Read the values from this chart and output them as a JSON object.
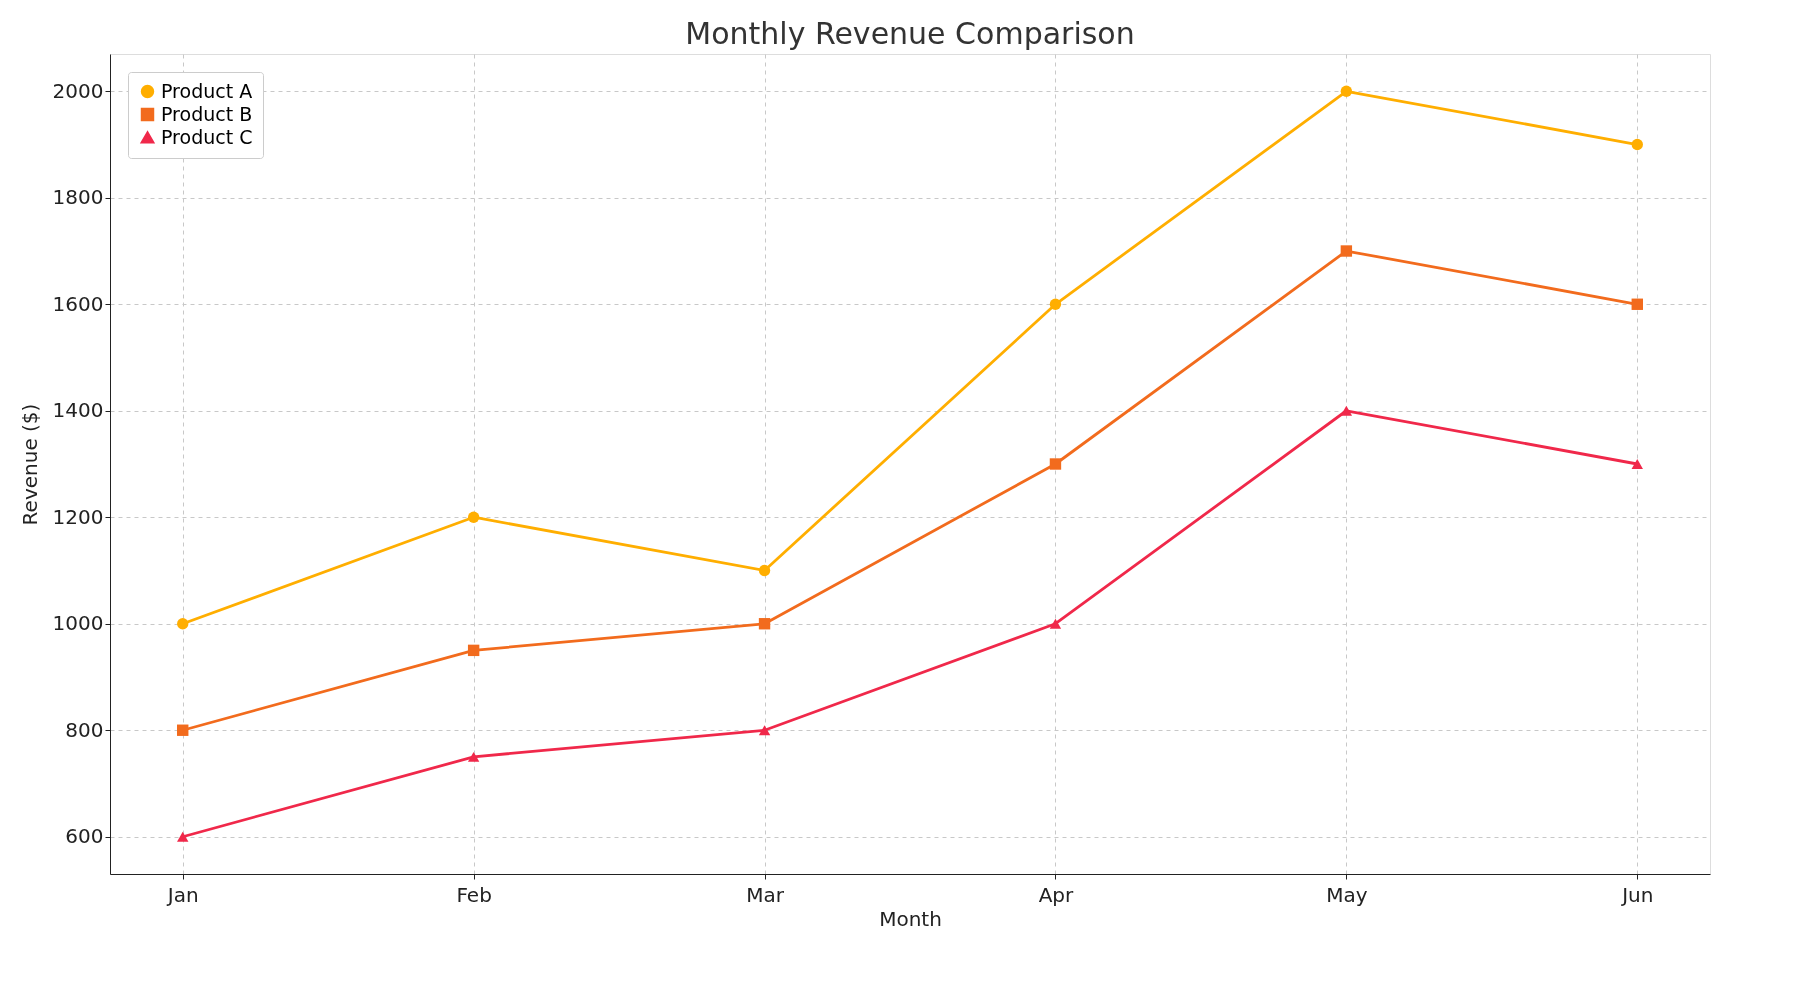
{
  "chart_data": {
    "type": "line",
    "title": "Monthly Revenue Comparison",
    "xlabel": "Month",
    "ylabel": "Revenue ($)",
    "categories": [
      "Jan",
      "Feb",
      "Mar",
      "Apr",
      "May",
      "Jun"
    ],
    "series": [
      {
        "name": "Product A",
        "color": "#ffae00",
        "marker": "circle",
        "values": [
          1000,
          1200,
          1100,
          1600,
          2000,
          1900
        ]
      },
      {
        "name": "Product B",
        "color": "#f26b1d",
        "marker": "square",
        "values": [
          800,
          950,
          1000,
          1300,
          1700,
          1600
        ]
      },
      {
        "name": "Product C",
        "color": "#f0284a",
        "marker": "triangle",
        "values": [
          600,
          750,
          800,
          1000,
          1400,
          1300
        ]
      }
    ],
    "ylim": [
      530,
      2070
    ],
    "yticks": [
      600,
      800,
      1000,
      1200,
      1400,
      1600,
      1800,
      2000
    ],
    "grid": true,
    "legend": "top left",
    "line_style": "solid"
  }
}
